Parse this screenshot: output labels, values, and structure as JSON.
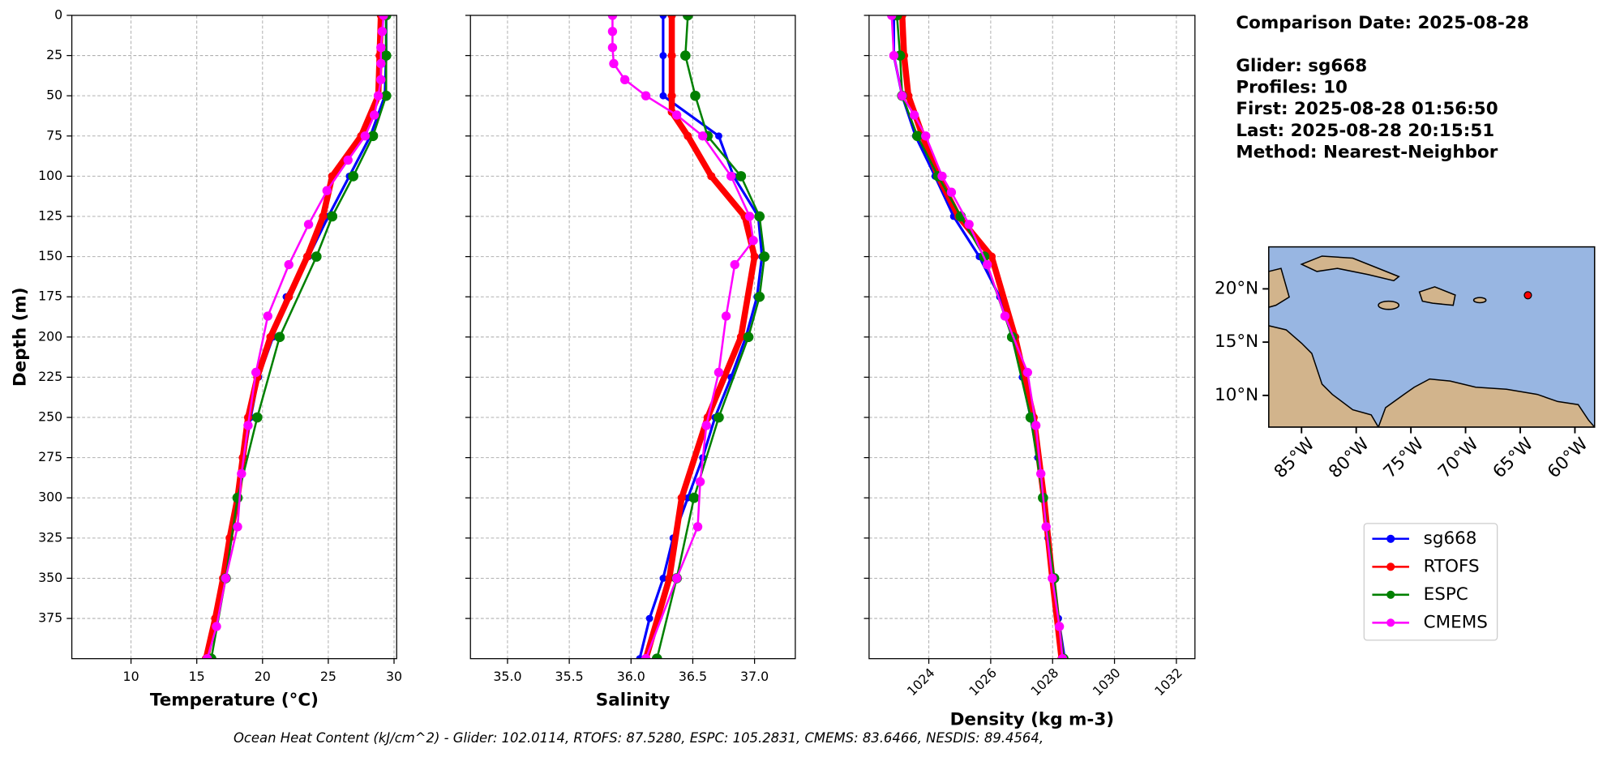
{
  "chart_data": [
    {
      "type": "line",
      "x_label": "Temperature (°C)",
      "y_label": "Depth (m)",
      "xlim": [
        5.5,
        30.2
      ],
      "xticks": [
        10,
        15,
        20,
        25,
        30
      ],
      "ylim": [
        400,
        0
      ],
      "yticks": [
        0,
        25,
        50,
        75,
        100,
        125,
        150,
        175,
        200,
        225,
        250,
        275,
        300,
        325,
        350,
        375
      ],
      "grid": true,
      "series": [
        {
          "name": "sg668",
          "color": "#0000ff",
          "depth": [
            0,
            25,
            50,
            75,
            100,
            125,
            150,
            175,
            200,
            225,
            250,
            275,
            300,
            325,
            350,
            375,
            400
          ],
          "values": [
            29.4,
            29.4,
            29.3,
            28.2,
            26.6,
            25.0,
            23.5,
            21.8,
            20.8,
            19.7,
            19.1,
            18.6,
            18.0,
            17.5,
            17.0,
            16.4,
            15.8
          ]
        },
        {
          "name": "RTOFS",
          "color": "#ff0000",
          "depth": [
            0,
            25,
            50,
            75,
            100,
            125,
            150,
            175,
            200,
            225,
            250,
            275,
            300,
            325,
            350,
            375,
            400
          ],
          "values": [
            29.0,
            28.9,
            28.8,
            27.5,
            25.3,
            24.6,
            23.4,
            22.0,
            20.6,
            19.6,
            18.9,
            18.5,
            18.1,
            17.5,
            17.0,
            16.4,
            15.7
          ]
        },
        {
          "name": "ESPC",
          "color": "#008000",
          "depth": [
            0,
            25,
            50,
            75,
            100,
            125,
            150,
            200,
            250,
            300,
            350,
            400
          ],
          "values": [
            29.4,
            29.4,
            29.4,
            28.4,
            26.9,
            25.3,
            24.1,
            21.3,
            19.6,
            18.1,
            17.2,
            16.1
          ]
        },
        {
          "name": "CMEMS",
          "color": "#ff00ff",
          "depth": [
            0,
            10,
            20,
            30,
            40,
            50,
            62,
            75,
            90,
            109,
            130,
            155,
            187,
            222,
            255,
            285,
            318,
            350,
            380,
            400
          ],
          "values": [
            29.2,
            29.1,
            29.0,
            29.0,
            29.0,
            28.8,
            28.5,
            27.8,
            26.5,
            24.9,
            23.5,
            22.0,
            20.4,
            19.5,
            18.9,
            18.4,
            18.1,
            17.2,
            16.5,
            15.8
          ]
        }
      ]
    },
    {
      "type": "line",
      "x_label": "Salinity",
      "xlim": [
        34.7,
        37.33
      ],
      "xticks": [
        {
          "value": 35,
          "label": "35.0"
        },
        35.5,
        {
          "value": 36,
          "label": "36.0"
        },
        36.5,
        {
          "value": 37,
          "label": "37.0"
        }
      ],
      "ylim": [
        400,
        0
      ],
      "yticks": [
        0,
        25,
        50,
        75,
        100,
        125,
        150,
        175,
        200,
        225,
        250,
        275,
        300,
        325,
        350,
        375
      ],
      "ytick_labels": false,
      "grid": true,
      "series": [
        {
          "color": "#0000ff",
          "depth": [
            0,
            25,
            50,
            75,
            100,
            125,
            150,
            175,
            200,
            225,
            250,
            275,
            300,
            325,
            350,
            375,
            400
          ],
          "values": [
            36.26,
            36.26,
            36.26,
            36.71,
            36.83,
            37.03,
            37.06,
            37.02,
            36.93,
            36.81,
            36.68,
            36.58,
            36.46,
            36.34,
            36.26,
            36.15,
            36.07
          ]
        },
        {
          "color": "#ff0000",
          "depth": [
            0,
            25,
            50,
            60,
            75,
            100,
            125,
            150,
            200,
            250,
            300,
            350,
            400
          ],
          "values": [
            36.33,
            36.33,
            36.33,
            36.33,
            36.46,
            36.65,
            36.92,
            37.0,
            36.89,
            36.62,
            36.41,
            36.31,
            36.12
          ]
        },
        {
          "color": "#008000",
          "depth": [
            0,
            25,
            50,
            75,
            100,
            125,
            150,
            175,
            200,
            250,
            300,
            350,
            400
          ],
          "values": [
            36.46,
            36.44,
            36.52,
            36.62,
            36.89,
            37.04,
            37.08,
            37.04,
            36.95,
            36.71,
            36.51,
            36.37,
            36.21
          ]
        },
        {
          "color": "#ff00ff",
          "depth": [
            0,
            10,
            20,
            30,
            40,
            50,
            62,
            75,
            100,
            125,
            140,
            155,
            187,
            222,
            255,
            290,
            318,
            350,
            400
          ],
          "values": [
            35.85,
            35.85,
            35.85,
            35.86,
            35.95,
            36.12,
            36.37,
            36.58,
            36.81,
            36.96,
            36.99,
            36.84,
            36.77,
            36.71,
            36.61,
            36.56,
            36.54,
            36.37,
            36.12
          ]
        }
      ]
    },
    {
      "type": "line",
      "x_label": "Density (kg m-3)",
      "xlim": [
        1022.07,
        1032.6
      ],
      "xticks": [
        1024,
        1026,
        1028,
        1030,
        1032
      ],
      "xtick_rotation": 45,
      "ylim": [
        400,
        0
      ],
      "yticks": [
        0,
        25,
        50,
        75,
        100,
        125,
        150,
        175,
        200,
        225,
        250,
        275,
        300,
        325,
        350,
        375
      ],
      "ytick_labels": false,
      "grid": true,
      "series": [
        {
          "color": "#0000ff",
          "depth": [
            0,
            25,
            50,
            75,
            100,
            125,
            150,
            175,
            200,
            225,
            250,
            275,
            300,
            325,
            350,
            375,
            400
          ],
          "values": [
            1022.87,
            1022.87,
            1023.14,
            1023.57,
            1024.2,
            1024.8,
            1025.63,
            1026.29,
            1026.69,
            1027.02,
            1027.29,
            1027.52,
            1027.69,
            1027.85,
            1028.02,
            1028.19,
            1028.39
          ]
        },
        {
          "color": "#ff0000",
          "depth": [
            0,
            25,
            50,
            75,
            100,
            125,
            150,
            200,
            250,
            300,
            350,
            400
          ],
          "values": [
            1023.14,
            1023.2,
            1023.34,
            1023.8,
            1024.3,
            1024.96,
            1026.03,
            1026.79,
            1027.39,
            1027.72,
            1027.99,
            1028.29
          ]
        },
        {
          "color": "#008000",
          "depth": [
            0,
            25,
            50,
            75,
            100,
            125,
            150,
            200,
            250,
            300,
            350,
            400
          ],
          "values": [
            1022.97,
            1023.07,
            1023.14,
            1023.63,
            1024.3,
            1025.03,
            1025.79,
            1026.69,
            1027.29,
            1027.69,
            1028.05,
            1028.35
          ]
        },
        {
          "color": "#ff00ff",
          "depth": [
            0,
            25,
            50,
            62,
            75,
            100,
            110,
            130,
            155,
            187,
            222,
            255,
            285,
            318,
            350,
            380,
            400
          ],
          "values": [
            1022.8,
            1022.87,
            1023.14,
            1023.53,
            1023.9,
            1024.43,
            1024.73,
            1025.3,
            1025.89,
            1026.46,
            1027.19,
            1027.46,
            1027.62,
            1027.79,
            1027.99,
            1028.22,
            1028.32
          ]
        }
      ]
    },
    {
      "type": "map",
      "xlim": [
        -88.0,
        -58.2
      ],
      "ylim": [
        7.02,
        23.94
      ],
      "xticks": [
        {
          "value": -85,
          "label": "85°W"
        },
        {
          "value": -80,
          "label": "80°W"
        },
        {
          "value": -75,
          "label": "75°W"
        },
        {
          "value": -70,
          "label": "70°W"
        },
        {
          "value": -65,
          "label": "65°W"
        },
        {
          "value": -60,
          "label": "60°W"
        }
      ],
      "yticks": [
        {
          "value": 10,
          "label": "10°N"
        },
        {
          "value": 15,
          "label": "15°N"
        },
        {
          "value": 20,
          "label": "20°N"
        }
      ],
      "point": {
        "x": -64.3,
        "y": 19.4,
        "color": "#ff0000"
      }
    }
  ],
  "info": [
    "Comparison Date: 2025-08-28",
    "Glider: sg668",
    "Profiles: 10",
    "First: 2025-08-28 01:56:50",
    "Last: 2025-08-28 20:15:51",
    "Method: Nearest-Neighbor"
  ],
  "footer": "Ocean Heat Content (kJ/cm^2) - Glider: 102.0114,  RTOFS: 87.5280,  ESPC: 105.2831,  CMEMS: 83.6466,  NESDIS: 89.4564,"
}
